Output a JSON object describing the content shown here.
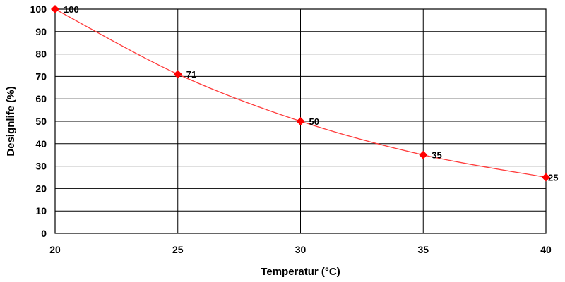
{
  "chart_data": {
    "type": "line",
    "title": "",
    "xlabel": "Temperatur (°C)",
    "ylabel": "Designlife (%)",
    "x": [
      20,
      25,
      30,
      35,
      40
    ],
    "xticks": [
      "20",
      "25",
      "30",
      "35",
      "40"
    ],
    "yticks": [
      "0",
      "10",
      "20",
      "30",
      "40",
      "50",
      "60",
      "70",
      "80",
      "90",
      "100"
    ],
    "xlim": [
      20,
      40
    ],
    "ylim": [
      0,
      100
    ],
    "grid": true,
    "series": [
      {
        "values": [
          100,
          71,
          50,
          35,
          25
        ],
        "labels": [
          "100",
          "71",
          "50",
          "35",
          "25"
        ]
      }
    ],
    "colors": {
      "line": "#ff3b3b",
      "marker": "#ff0000",
      "grid": "#000000"
    },
    "marker": "diamond"
  }
}
